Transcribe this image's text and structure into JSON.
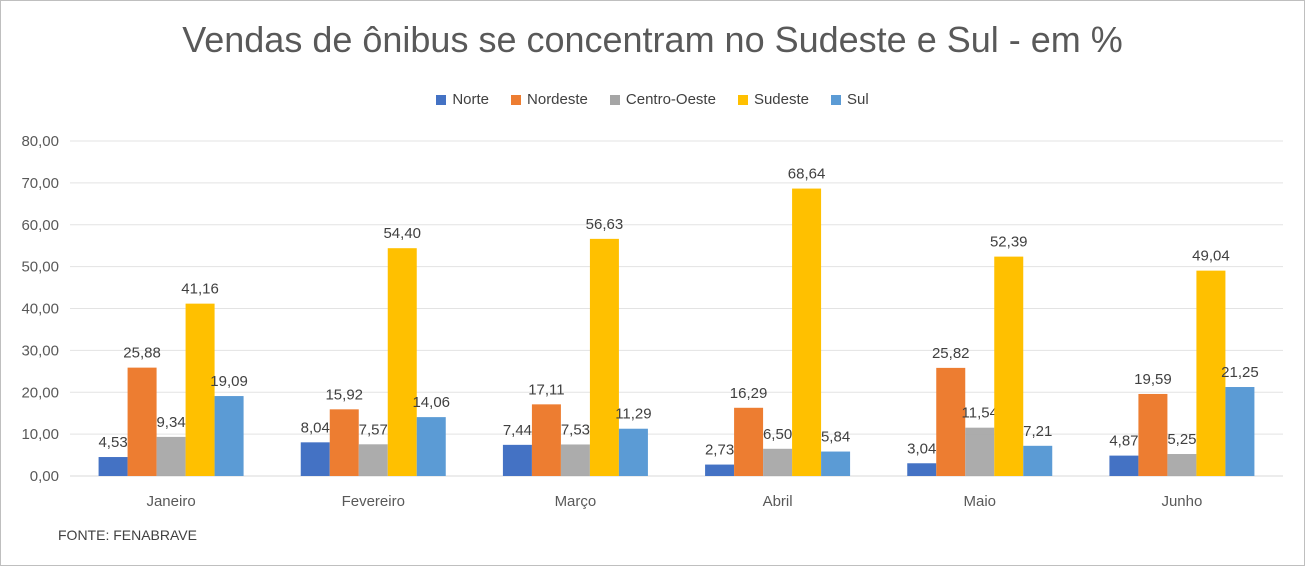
{
  "chart_data": {
    "type": "bar",
    "title": "Vendas de ônibus se concentram no Sudeste e Sul - em %",
    "categories": [
      "Janeiro",
      "Fevereiro",
      "Março",
      "Abril",
      "Maio",
      "Junho"
    ],
    "series": [
      {
        "name": "Norte",
        "color": "#4472c4",
        "values": [
          4.53,
          8.04,
          7.44,
          2.73,
          3.04,
          4.87
        ],
        "labels": [
          "4,53",
          "8,04",
          "7,44",
          "2,73",
          "3,04",
          "4,87"
        ]
      },
      {
        "name": "Nordeste",
        "color": "#ed7d31",
        "values": [
          25.88,
          15.92,
          17.11,
          16.29,
          25.82,
          19.59
        ],
        "labels": [
          "25,88",
          "15,92",
          "17,11",
          "16,29",
          "25,82",
          "19,59"
        ]
      },
      {
        "name": "Centro-Oeste",
        "color": "#a5a5a5",
        "values": [
          9.34,
          7.57,
          7.53,
          6.5,
          11.54,
          5.25
        ],
        "labels": [
          "9,34",
          "7,57",
          "7,53",
          "6,50",
          "11,54",
          "5,25"
        ]
      },
      {
        "name": "Sudeste",
        "color": "#ffc000",
        "values": [
          41.16,
          54.4,
          56.63,
          68.64,
          52.39,
          49.04
        ],
        "labels": [
          "41,16",
          "54,40",
          "56,63",
          "68,64",
          "52,39",
          "49,04"
        ]
      },
      {
        "name": "Sul",
        "color": "#5b9bd5",
        "values": [
          19.09,
          14.06,
          11.29,
          5.84,
          7.21,
          21.25
        ],
        "labels": [
          "19,09",
          "14,06",
          "11,29",
          "5,84",
          "7,21",
          "21,25"
        ]
      }
    ],
    "ylim": [
      0,
      80
    ],
    "yticks": [
      0,
      10,
      20,
      30,
      40,
      50,
      60,
      70,
      80
    ],
    "ytick_labels": [
      "0,00",
      "10,00",
      "20,00",
      "30,00",
      "40,00",
      "50,00",
      "60,00",
      "70,00",
      "80,00"
    ],
    "xlabel": "",
    "ylabel": "",
    "legend_position": "top",
    "grid": true
  },
  "source_note": "FONTE: FENABRAVE"
}
